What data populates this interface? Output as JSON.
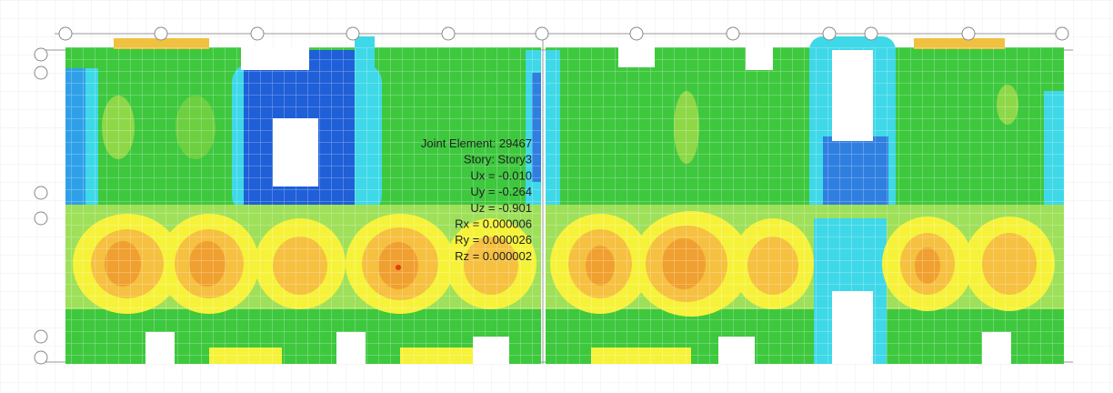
{
  "tooltip": {
    "lines": [
      "Joint Element: 29467",
      "Story: Story3",
      "Ux = -0.010",
      "Uy = -0.264",
      "Uz = -0.901",
      "Rx = 0.000006",
      "Ry = 0.000026",
      "Rz = 0.000002"
    ]
  }
}
